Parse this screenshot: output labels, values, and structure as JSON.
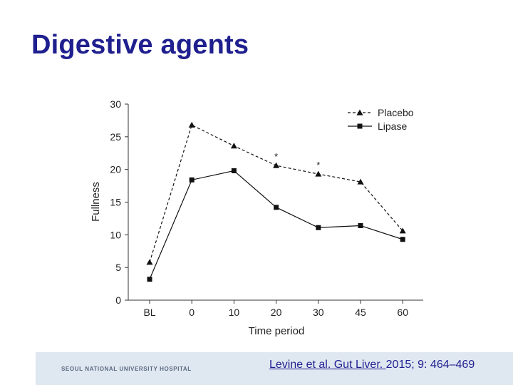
{
  "slide": {
    "title": "Digestive agents"
  },
  "footer": {
    "hospital_name": "SEOUL NATIONAL UNIVERSITY HOSPITAL",
    "citation_link": "Levine et al. Gut Liver. ",
    "citation_rest": "2015; 9: 464–469"
  },
  "chart_data": {
    "type": "line",
    "title": "",
    "xlabel": "Time period",
    "ylabel": "Fullness",
    "categories": [
      "BL",
      "0",
      "10",
      "20",
      "30",
      "45",
      "60"
    ],
    "ylim": [
      0,
      30
    ],
    "yticks": [
      "0",
      "5",
      "10",
      "15",
      "20",
      "25",
      "30"
    ],
    "grid": false,
    "legend_position": "top-right",
    "series": [
      {
        "name": "Placebo",
        "marker": "triangle",
        "line_style": "dashed",
        "values": [
          5.8,
          26.8,
          23.6,
          20.6,
          19.3,
          18.1,
          10.6
        ]
      },
      {
        "name": "Lipase",
        "marker": "square",
        "line_style": "solid",
        "values": [
          3.2,
          18.4,
          19.8,
          14.2,
          11.1,
          11.4,
          9.3
        ]
      }
    ],
    "annotations": [
      {
        "text": "*",
        "x": "20"
      },
      {
        "text": "*",
        "x": "30"
      }
    ]
  }
}
